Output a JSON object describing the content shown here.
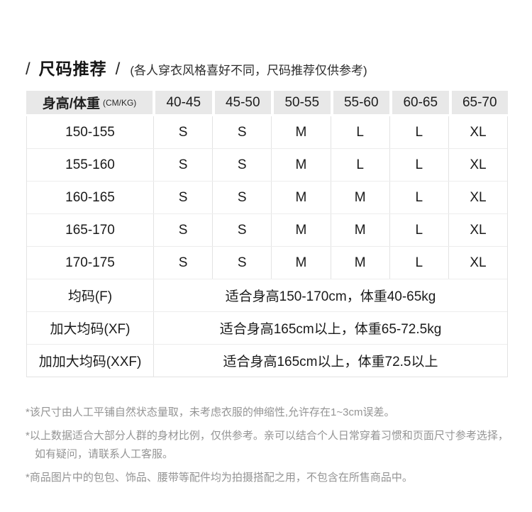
{
  "header": {
    "slash_left": "/",
    "title": "尺码推荐",
    "slash_right": "/",
    "subtitle": "(各人穿衣风格喜好不同，尺码推荐仅供参考)"
  },
  "size_table": {
    "corner_label": "身高/体重",
    "corner_unit": "(CM/KG)",
    "weight_columns": [
      "40-45",
      "45-50",
      "50-55",
      "55-60",
      "60-65",
      "65-70"
    ],
    "rows": [
      {
        "height": "150-155",
        "sizes": [
          "S",
          "S",
          "M",
          "L",
          "L",
          "XL"
        ]
      },
      {
        "height": "155-160",
        "sizes": [
          "S",
          "S",
          "M",
          "L",
          "L",
          "XL"
        ]
      },
      {
        "height": "160-165",
        "sizes": [
          "S",
          "S",
          "M",
          "M",
          "L",
          "XL"
        ]
      },
      {
        "height": "165-170",
        "sizes": [
          "S",
          "S",
          "M",
          "M",
          "L",
          "XL"
        ]
      },
      {
        "height": "170-175",
        "sizes": [
          "S",
          "S",
          "M",
          "M",
          "L",
          "XL"
        ]
      }
    ],
    "merged_rows": [
      {
        "label": "均码(F)",
        "description": "适合身高150-170cm，体重40-65kg"
      },
      {
        "label": "加大均码(XF)",
        "description": "适合身高165cm以上，体重65-72.5kg"
      },
      {
        "label": "加加大均码(XXF)",
        "description": "适合身高165cm以上，体重72.5以上"
      }
    ]
  },
  "footnotes": [
    "*该尺寸由人工平铺自然状态量取，未考虑衣服的伸缩性,允许存在1~3cm误差。",
    "*以上数据适合大部分人群的身材比例，仅供参考。亲可以结合个人日常穿着习惯和页面尺寸参考选择，如有疑问，请联系人工客服。",
    "*商品图片中的包包、饰品、腰带等配件均为拍摄搭配之用，不包含在所售商品中。"
  ],
  "colors": {
    "header_bg": "#e8e8e8",
    "body_text": "#1a1a1a",
    "grid_line": "#e3e3e3",
    "footnote_text": "#949494"
  }
}
